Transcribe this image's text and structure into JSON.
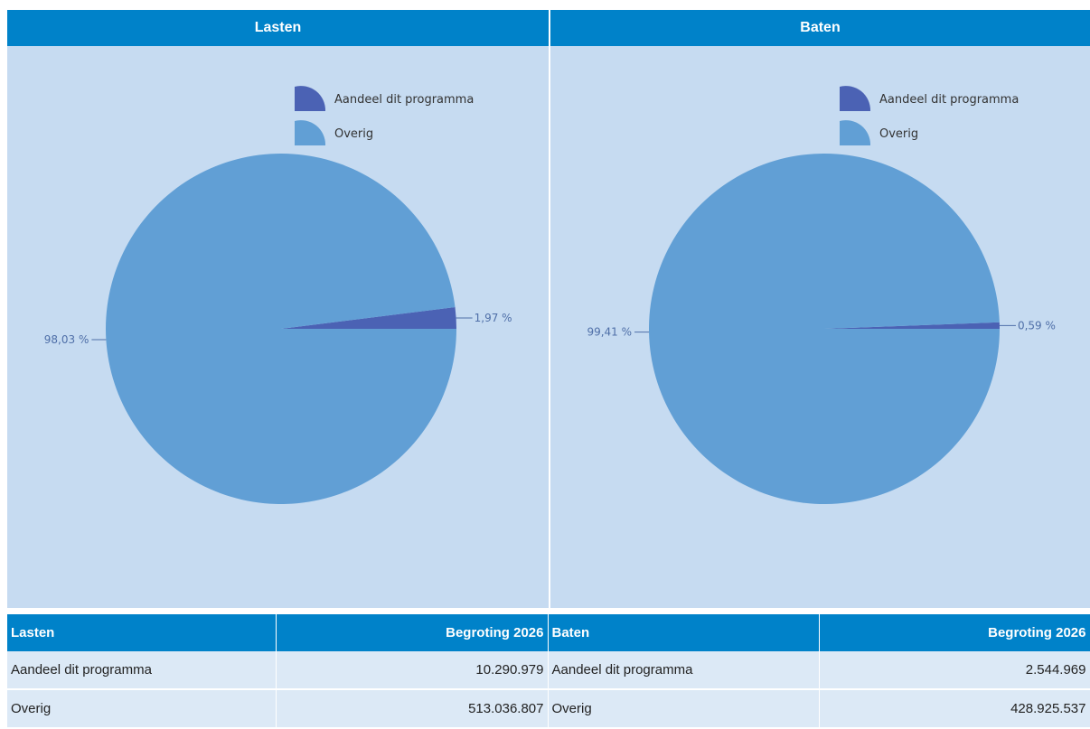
{
  "colors": {
    "header_bg": "#0082c9",
    "panel_bg": "#c6dbf1",
    "slice_programma": "#4b62b4",
    "slice_overig": "#619fd5",
    "row_bg": "#dce9f6"
  },
  "chart_data": [
    {
      "type": "pie",
      "title": "Lasten",
      "legend_position": "top-right",
      "slices": [
        {
          "label": "Aandeel dit programma",
          "value": 1.97,
          "value_label": "1,97 %",
          "color": "#4b62b4"
        },
        {
          "label": "Overig",
          "value": 98.03,
          "value_label": "98,03 %",
          "color": "#619fd5"
        }
      ]
    },
    {
      "type": "pie",
      "title": "Baten",
      "legend_position": "top-right",
      "slices": [
        {
          "label": "Aandeel dit programma",
          "value": 0.59,
          "value_label": "0,59 %",
          "color": "#4b62b4"
        },
        {
          "label": "Overig",
          "value": 99.41,
          "value_label": "99,41 %",
          "color": "#619fd5"
        }
      ]
    }
  ],
  "table": {
    "headers": [
      "Lasten",
      "Begroting 2026",
      "Baten",
      "Begroting 2026"
    ],
    "rows": [
      [
        "Aandeel dit programma",
        "10.290.979",
        "Aandeel dit programma",
        "2.544.969"
      ],
      [
        "Overig",
        "513.036.807",
        "Overig",
        "428.925.537"
      ]
    ]
  }
}
